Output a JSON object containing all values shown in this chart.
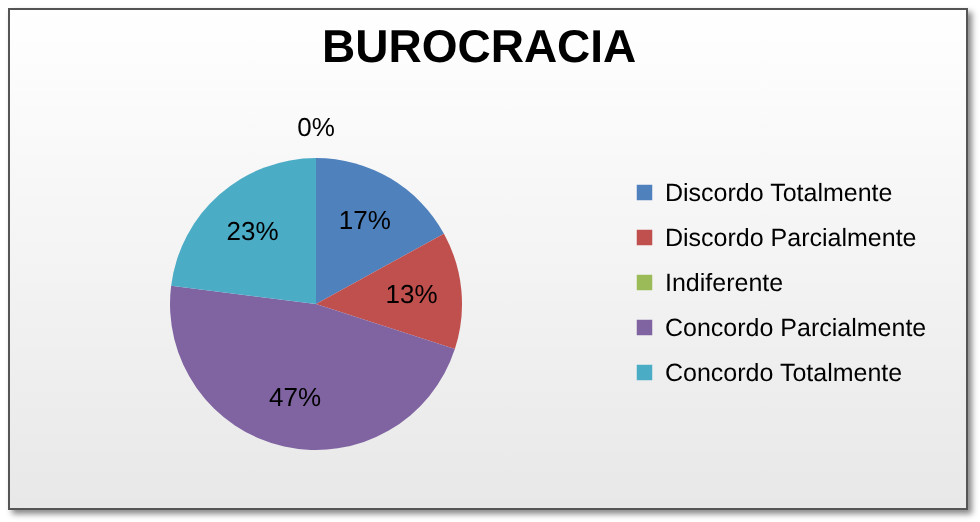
{
  "chart_data": {
    "type": "pie",
    "title": "BUROCRACIA",
    "categories": [
      "Discordo Totalmente",
      "Discordo Parcialmente",
      "Indiferente",
      "Concordo Parcialmente",
      "Concordo Totalmente"
    ],
    "values": [
      17,
      13,
      0,
      47,
      23
    ],
    "colors": [
      "#4f81bd",
      "#c0504d",
      "#9bbb59",
      "#8064a2",
      "#4bacc6"
    ],
    "value_labels": [
      "17%",
      "13%",
      "0%",
      "47%",
      "23%"
    ],
    "legend": "right"
  }
}
